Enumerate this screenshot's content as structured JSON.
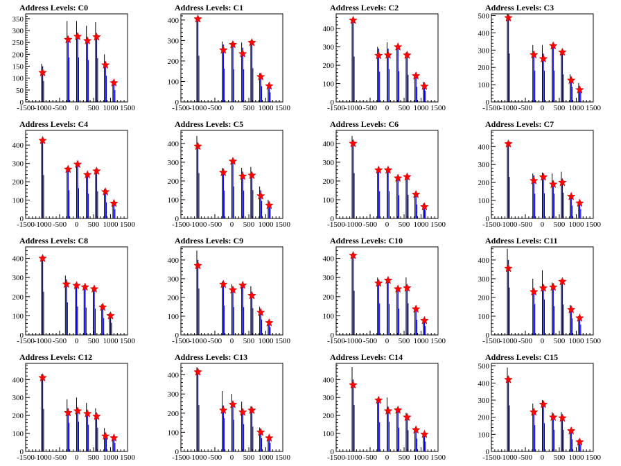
{
  "style": {
    "histogram_color": "#000000",
    "fit_color": "#0000ff",
    "marker_color": "#ff0000",
    "frame_color": "#000000",
    "background": "#ffffff"
  },
  "layout_grid": {
    "rows": 4,
    "cols": 4
  },
  "chart_data": [
    {
      "type": "bar",
      "title": "Address Levels: C0",
      "xlabel": "",
      "ylabel": "",
      "xlim": [
        -1500,
        1500
      ],
      "ylim": [
        0,
        370
      ],
      "x_ticks": [
        -1500,
        -1000,
        -500,
        0,
        500,
        1000,
        1500
      ],
      "y_ticks": [
        0,
        50,
        100,
        150,
        200,
        250,
        300,
        350
      ],
      "peaks": [
        {
          "x": -1000,
          "hist": 160,
          "fit": 150,
          "marker": 123
        },
        {
          "x": -250,
          "hist": 340,
          "fit": 275,
          "marker": 262
        },
        {
          "x": 30,
          "hist": 340,
          "fit": 283,
          "marker": 275
        },
        {
          "x": 320,
          "hist": 320,
          "fit": 265,
          "marker": 257
        },
        {
          "x": 590,
          "hist": 335,
          "fit": 280,
          "marker": 273
        },
        {
          "x": 850,
          "hist": 200,
          "fit": 160,
          "marker": 155
        },
        {
          "x": 1100,
          "hist": 90,
          "fit": 85,
          "marker": 80
        }
      ]
    },
    {
      "type": "bar",
      "title": "Address Levels: C1",
      "xlabel": "",
      "ylabel": "",
      "xlim": [
        -1500,
        1500
      ],
      "ylim": [
        0,
        430
      ],
      "x_ticks": [
        -1500,
        -1000,
        -500,
        0,
        500,
        1000,
        1500
      ],
      "y_ticks": [
        0,
        100,
        200,
        300,
        400
      ],
      "peaks": [
        {
          "x": -1000,
          "hist": 410,
          "fit": 405,
          "marker": 405
        },
        {
          "x": -250,
          "hist": 295,
          "fit": 280,
          "marker": 253
        },
        {
          "x": 30,
          "hist": 290,
          "fit": 285,
          "marker": 280
        },
        {
          "x": 320,
          "hist": 290,
          "fit": 265,
          "marker": 235
        },
        {
          "x": 590,
          "hist": 300,
          "fit": 295,
          "marker": 290
        },
        {
          "x": 850,
          "hist": 140,
          "fit": 130,
          "marker": 123
        },
        {
          "x": 1100,
          "hist": 85,
          "fit": 80,
          "marker": 78
        }
      ]
    },
    {
      "type": "bar",
      "title": "Address Levels: C2",
      "xlabel": "",
      "ylabel": "",
      "xlim": [
        -1500,
        1500
      ],
      "ylim": [
        0,
        480
      ],
      "x_ticks": [
        -1500,
        -1000,
        -500,
        0,
        500,
        1000,
        1500
      ],
      "y_ticks": [
        0,
        100,
        200,
        300,
        400
      ],
      "peaks": [
        {
          "x": -1000,
          "hist": 450,
          "fit": 445,
          "marker": 445
        },
        {
          "x": -250,
          "hist": 300,
          "fit": 290,
          "marker": 253
        },
        {
          "x": 30,
          "hist": 325,
          "fit": 290,
          "marker": 255
        },
        {
          "x": 320,
          "hist": 305,
          "fit": 300,
          "marker": 300
        },
        {
          "x": 590,
          "hist": 270,
          "fit": 260,
          "marker": 255
        },
        {
          "x": 850,
          "hist": 150,
          "fit": 145,
          "marker": 142
        },
        {
          "x": 1100,
          "hist": 110,
          "fit": 95,
          "marker": 85
        }
      ]
    },
    {
      "type": "bar",
      "title": "Address Levels: C3",
      "xlabel": "",
      "ylabel": "",
      "xlim": [
        -1500,
        1500
      ],
      "ylim": [
        0,
        510
      ],
      "x_ticks": [
        -1500,
        -1000,
        -500,
        0,
        500,
        1000,
        1500
      ],
      "y_ticks": [
        0,
        100,
        200,
        300,
        400,
        500
      ],
      "peaks": [
        {
          "x": -1000,
          "hist": 510,
          "fit": 490,
          "marker": 487
        },
        {
          "x": -250,
          "hist": 330,
          "fit": 290,
          "marker": 273
        },
        {
          "x": 30,
          "hist": 330,
          "fit": 280,
          "marker": 250
        },
        {
          "x": 320,
          "hist": 330,
          "fit": 325,
          "marker": 325
        },
        {
          "x": 590,
          "hist": 290,
          "fit": 285,
          "marker": 288
        },
        {
          "x": 850,
          "hist": 160,
          "fit": 135,
          "marker": 125
        },
        {
          "x": 1100,
          "hist": 110,
          "fit": 90,
          "marker": 70
        }
      ]
    },
    {
      "type": "bar",
      "title": "Address Levels: C4",
      "xlabel": "",
      "ylabel": "",
      "xlim": [
        -1500,
        1500
      ],
      "ylim": [
        0,
        480
      ],
      "x_ticks": [
        -1500,
        -1000,
        -500,
        0,
        500,
        1000,
        1500
      ],
      "y_ticks": [
        0,
        100,
        200,
        300,
        400
      ],
      "peaks": [
        {
          "x": -1000,
          "hist": 430,
          "fit": 425,
          "marker": 425
        },
        {
          "x": -250,
          "hist": 280,
          "fit": 275,
          "marker": 268
        },
        {
          "x": 30,
          "hist": 300,
          "fit": 298,
          "marker": 295
        },
        {
          "x": 320,
          "hist": 245,
          "fit": 240,
          "marker": 238
        },
        {
          "x": 590,
          "hist": 270,
          "fit": 265,
          "marker": 258
        },
        {
          "x": 850,
          "hist": 160,
          "fit": 150,
          "marker": 145
        },
        {
          "x": 1100,
          "hist": 90,
          "fit": 85,
          "marker": 82
        }
      ]
    },
    {
      "type": "bar",
      "title": "Address Levels: C5",
      "xlabel": "",
      "ylabel": "",
      "xlim": [
        -1500,
        1500
      ],
      "ylim": [
        0,
        470
      ],
      "x_ticks": [
        -1500,
        -1000,
        -500,
        0,
        500,
        1000,
        1500
      ],
      "y_ticks": [
        0,
        100,
        200,
        300,
        400
      ],
      "peaks": [
        {
          "x": -1000,
          "hist": 440,
          "fit": 400,
          "marker": 385
        },
        {
          "x": -250,
          "hist": 270,
          "fit": 260,
          "marker": 245
        },
        {
          "x": 30,
          "hist": 310,
          "fit": 308,
          "marker": 305
        },
        {
          "x": 320,
          "hist": 270,
          "fit": 250,
          "marker": 225
        },
        {
          "x": 590,
          "hist": 275,
          "fit": 245,
          "marker": 230
        },
        {
          "x": 850,
          "hist": 170,
          "fit": 150,
          "marker": 120
        },
        {
          "x": 1100,
          "hist": 100,
          "fit": 85,
          "marker": 70
        }
      ]
    },
    {
      "type": "bar",
      "title": "Address Levels: C6",
      "xlabel": "",
      "ylabel": "",
      "xlim": [
        -1500,
        1500
      ],
      "ylim": [
        0,
        470
      ],
      "x_ticks": [
        -1500,
        -1000,
        -500,
        0,
        500,
        1000,
        1500
      ],
      "y_ticks": [
        0,
        100,
        200,
        300,
        400
      ],
      "peaks": [
        {
          "x": -1000,
          "hist": 440,
          "fit": 410,
          "marker": 400
        },
        {
          "x": -250,
          "hist": 265,
          "fit": 260,
          "marker": 258
        },
        {
          "x": 30,
          "hist": 265,
          "fit": 260,
          "marker": 258
        },
        {
          "x": 320,
          "hist": 225,
          "fit": 220,
          "marker": 215
        },
        {
          "x": 590,
          "hist": 230,
          "fit": 225,
          "marker": 222
        },
        {
          "x": 850,
          "hist": 135,
          "fit": 130,
          "marker": 128
        },
        {
          "x": 1100,
          "hist": 80,
          "fit": 70,
          "marker": 62
        }
      ]
    },
    {
      "type": "bar",
      "title": "Address Levels: C7",
      "xlabel": "",
      "ylabel": "",
      "xlim": [
        -1500,
        1500
      ],
      "ylim": [
        0,
        490
      ],
      "x_ticks": [
        -1500,
        -1000,
        -500,
        0,
        500,
        1000,
        1500
      ],
      "y_ticks": [
        0,
        100,
        200,
        300,
        400
      ],
      "peaks": [
        {
          "x": -1000,
          "hist": 420,
          "fit": 418,
          "marker": 415
        },
        {
          "x": -250,
          "hist": 250,
          "fit": 240,
          "marker": 210
        },
        {
          "x": 30,
          "hist": 255,
          "fit": 250,
          "marker": 230
        },
        {
          "x": 320,
          "hist": 250,
          "fit": 210,
          "marker": 190
        },
        {
          "x": 590,
          "hist": 260,
          "fit": 215,
          "marker": 200
        },
        {
          "x": 850,
          "hist": 130,
          "fit": 125,
          "marker": 122
        },
        {
          "x": 1100,
          "hist": 95,
          "fit": 88,
          "marker": 85
        }
      ]
    },
    {
      "type": "bar",
      "title": "Address Levels: C8",
      "xlabel": "",
      "ylabel": "",
      "xlim": [
        -1500,
        1500
      ],
      "ylim": [
        0,
        460
      ],
      "x_ticks": [
        -1500,
        -1000,
        -500,
        0,
        500,
        1000,
        1500
      ],
      "y_ticks": [
        0,
        100,
        200,
        300,
        400
      ],
      "peaks": [
        {
          "x": -1000,
          "hist": 410,
          "fit": 405,
          "marker": 400
        },
        {
          "x": -300,
          "hist": 310,
          "fit": 290,
          "marker": 265
        },
        {
          "x": 0,
          "hist": 270,
          "fit": 265,
          "marker": 258
        },
        {
          "x": 250,
          "hist": 260,
          "fit": 255,
          "marker": 250
        },
        {
          "x": 520,
          "hist": 250,
          "fit": 245,
          "marker": 240
        },
        {
          "x": 770,
          "hist": 160,
          "fit": 155,
          "marker": 145
        },
        {
          "x": 1000,
          "hist": 115,
          "fit": 110,
          "marker": 100
        }
      ]
    },
    {
      "type": "bar",
      "title": "Address Levels: C9",
      "xlabel": "",
      "ylabel": "",
      "xlim": [
        -1500,
        1500
      ],
      "ylim": [
        0,
        470
      ],
      "x_ticks": [
        -1500,
        -1000,
        -500,
        0,
        500,
        1000,
        1500
      ],
      "y_ticks": [
        0,
        100,
        200,
        300,
        400
      ],
      "peaks": [
        {
          "x": -1000,
          "hist": 450,
          "fit": 400,
          "marker": 370
        },
        {
          "x": -250,
          "hist": 285,
          "fit": 275,
          "marker": 270
        },
        {
          "x": 30,
          "hist": 270,
          "fit": 250,
          "marker": 240
        },
        {
          "x": 320,
          "hist": 270,
          "fit": 265,
          "marker": 265
        },
        {
          "x": 590,
          "hist": 260,
          "fit": 230,
          "marker": 210
        },
        {
          "x": 850,
          "hist": 150,
          "fit": 130,
          "marker": 120
        },
        {
          "x": 1100,
          "hist": 75,
          "fit": 70,
          "marker": 65
        }
      ]
    },
    {
      "type": "bar",
      "title": "Address Levels: C10",
      "xlabel": "",
      "ylabel": "",
      "xlim": [
        -1500,
        1500
      ],
      "ylim": [
        0,
        460
      ],
      "x_ticks": [
        -1500,
        -1000,
        -500,
        0,
        500,
        1000,
        1500
      ],
      "y_ticks": [
        0,
        100,
        200,
        300,
        400
      ],
      "peaks": [
        {
          "x": -1000,
          "hist": 420,
          "fit": 418,
          "marker": 415
        },
        {
          "x": -250,
          "hist": 300,
          "fit": 280,
          "marker": 270
        },
        {
          "x": 30,
          "hist": 295,
          "fit": 290,
          "marker": 285
        },
        {
          "x": 320,
          "hist": 250,
          "fit": 245,
          "marker": 240
        },
        {
          "x": 590,
          "hist": 300,
          "fit": 260,
          "marker": 245
        },
        {
          "x": 850,
          "hist": 145,
          "fit": 140,
          "marker": 135
        },
        {
          "x": 1100,
          "hist": 85,
          "fit": 80,
          "marker": 75
        }
      ]
    },
    {
      "type": "bar",
      "title": "Address Levels: C11",
      "xlabel": "",
      "ylabel": "",
      "xlim": [
        -1500,
        1500
      ],
      "ylim": [
        0,
        470
      ],
      "x_ticks": [
        -1500,
        -1000,
        -500,
        0,
        500,
        1000,
        1500
      ],
      "y_ticks": [
        0,
        100,
        200,
        300,
        400
      ],
      "peaks": [
        {
          "x": -1000,
          "hist": 460,
          "fit": 400,
          "marker": 355
        },
        {
          "x": -250,
          "hist": 300,
          "fit": 250,
          "marker": 230
        },
        {
          "x": 30,
          "hist": 345,
          "fit": 270,
          "marker": 250
        },
        {
          "x": 320,
          "hist": 280,
          "fit": 265,
          "marker": 255
        },
        {
          "x": 590,
          "hist": 295,
          "fit": 290,
          "marker": 285
        },
        {
          "x": 850,
          "hist": 160,
          "fit": 145,
          "marker": 135
        },
        {
          "x": 1100,
          "hist": 100,
          "fit": 95,
          "marker": 90
        }
      ]
    },
    {
      "type": "bar",
      "title": "Address Levels: C12",
      "xlabel": "",
      "ylabel": "",
      "xlim": [
        -1500,
        1500
      ],
      "ylim": [
        0,
        490
      ],
      "x_ticks": [
        -1500,
        -1000,
        -500,
        0,
        500,
        1000,
        1500
      ],
      "y_ticks": [
        0,
        100,
        200,
        300,
        400
      ],
      "peaks": [
        {
          "x": -1000,
          "hist": 430,
          "fit": 415,
          "marker": 410
        },
        {
          "x": -250,
          "hist": 290,
          "fit": 240,
          "marker": 215
        },
        {
          "x": 30,
          "hist": 300,
          "fit": 240,
          "marker": 225
        },
        {
          "x": 320,
          "hist": 270,
          "fit": 220,
          "marker": 210
        },
        {
          "x": 590,
          "hist": 240,
          "fit": 210,
          "marker": 195
        },
        {
          "x": 850,
          "hist": 130,
          "fit": 100,
          "marker": 85
        },
        {
          "x": 1100,
          "hist": 85,
          "fit": 80,
          "marker": 75
        }
      ]
    },
    {
      "type": "bar",
      "title": "Address Levels: C13",
      "xlabel": "",
      "ylabel": "",
      "xlim": [
        -1500,
        1500
      ],
      "ylim": [
        0,
        460
      ],
      "x_ticks": [
        -1500,
        -1000,
        -500,
        0,
        500,
        1000,
        1500
      ],
      "y_ticks": [
        0,
        100,
        200,
        300,
        400
      ],
      "peaks": [
        {
          "x": -1000,
          "hist": 440,
          "fit": 420,
          "marker": 415
        },
        {
          "x": -250,
          "hist": 315,
          "fit": 240,
          "marker": 215
        },
        {
          "x": 30,
          "hist": 300,
          "fit": 260,
          "marker": 245
        },
        {
          "x": 320,
          "hist": 260,
          "fit": 215,
          "marker": 205
        },
        {
          "x": 590,
          "hist": 235,
          "fit": 225,
          "marker": 215
        },
        {
          "x": 850,
          "hist": 125,
          "fit": 110,
          "marker": 100
        },
        {
          "x": 1100,
          "hist": 80,
          "fit": 75,
          "marker": 70
        }
      ]
    },
    {
      "type": "bar",
      "title": "Address Levels: C14",
      "xlabel": "",
      "ylabel": "",
      "xlim": [
        -1500,
        1500
      ],
      "ylim": [
        0,
        490
      ],
      "x_ticks": [
        -1500,
        -1000,
        -500,
        0,
        500,
        1000,
        1500
      ],
      "y_ticks": [
        0,
        100,
        200,
        300,
        400
      ],
      "peaks": [
        {
          "x": -1000,
          "hist": 470,
          "fit": 400,
          "marker": 370
        },
        {
          "x": -250,
          "hist": 295,
          "fit": 290,
          "marker": 285
        },
        {
          "x": 30,
          "hist": 300,
          "fit": 250,
          "marker": 225
        },
        {
          "x": 320,
          "hist": 240,
          "fit": 235,
          "marker": 230
        },
        {
          "x": 590,
          "hist": 215,
          "fit": 205,
          "marker": 190
        },
        {
          "x": 850,
          "hist": 130,
          "fit": 125,
          "marker": 120
        },
        {
          "x": 1100,
          "hist": 100,
          "fit": 98,
          "marker": 95
        }
      ]
    },
    {
      "type": "bar",
      "title": "Address Levels: C15",
      "xlabel": "",
      "ylabel": "",
      "xlim": [
        -1500,
        1500
      ],
      "ylim": [
        0,
        515
      ],
      "x_ticks": [
        -1500,
        -1000,
        -500,
        0,
        500,
        1000,
        1500
      ],
      "y_ticks": [
        0,
        100,
        200,
        300,
        400,
        500
      ],
      "peaks": [
        {
          "x": -1000,
          "hist": 490,
          "fit": 440,
          "marker": 420
        },
        {
          "x": -250,
          "hist": 280,
          "fit": 250,
          "marker": 230
        },
        {
          "x": 30,
          "hist": 300,
          "fit": 290,
          "marker": 275
        },
        {
          "x": 320,
          "hist": 230,
          "fit": 220,
          "marker": 200
        },
        {
          "x": 590,
          "hist": 230,
          "fit": 210,
          "marker": 195
        },
        {
          "x": 850,
          "hist": 130,
          "fit": 125,
          "marker": 120
        },
        {
          "x": 1100,
          "hist": 70,
          "fit": 65,
          "marker": 55
        }
      ]
    }
  ]
}
